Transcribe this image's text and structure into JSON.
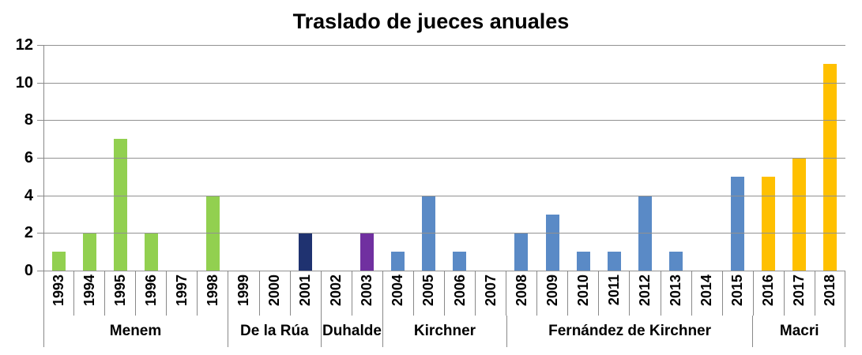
{
  "title": "Traslado de jueces anuales",
  "chart_data": {
    "type": "bar",
    "title": "Traslado de jueces anuales",
    "categories": [
      "1993",
      "1994",
      "1995",
      "1996",
      "1997",
      "1998",
      "1999",
      "2000",
      "2001",
      "2002",
      "2003",
      "2004",
      "2005",
      "2006",
      "2007",
      "2008",
      "2009",
      "2010",
      "2011",
      "2012",
      "2013",
      "2014",
      "2015",
      "2016",
      "2017",
      "2018"
    ],
    "values": [
      1,
      2,
      7,
      2,
      0,
      4,
      0,
      0,
      2,
      0,
      2,
      1,
      4,
      1,
      0,
      2,
      3,
      1,
      1,
      4,
      1,
      0,
      5,
      5,
      6,
      11
    ],
    "groups": [
      {
        "label": "Menem",
        "start": "1993",
        "end": "1998",
        "color": "#92D050"
      },
      {
        "label": "De la Rúa",
        "start": "1999",
        "end": "2001",
        "color": "#1F3270"
      },
      {
        "label": "Duhalde",
        "start": "2002",
        "end": "2003",
        "color": "#7030A0"
      },
      {
        "label": "Kirchner",
        "start": "2004",
        "end": "2007",
        "color": "#5A8AC6"
      },
      {
        "label": "Fernández de Kirchner",
        "start": "2008",
        "end": "2015",
        "color": "#5A8AC6"
      },
      {
        "label": "Macri",
        "start": "2016",
        "end": "2018",
        "color": "#FFC000"
      }
    ],
    "xlabel": "",
    "ylabel": "",
    "ylim": [
      0,
      12
    ],
    "yticks": [
      0,
      2,
      4,
      6,
      8,
      10,
      12
    ],
    "grid": true,
    "legend": false,
    "colors": {
      "gridline": "#919191",
      "axis": "#898989",
      "text": "#000000",
      "background": "#FFFFFF"
    }
  }
}
